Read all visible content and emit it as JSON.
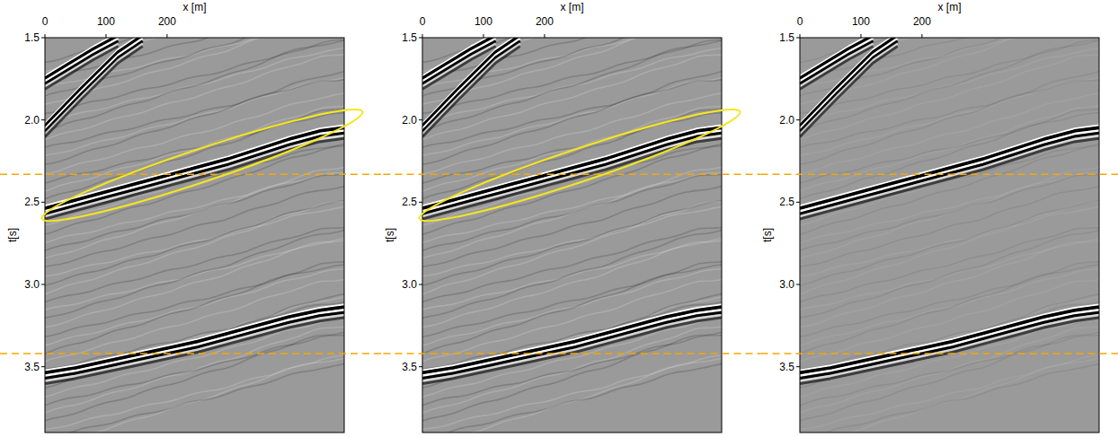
{
  "chart_data": [
    {
      "type": "seismic",
      "xlabel": "x [m]",
      "ylabel": "t[s]",
      "xlim": [
        0,
        490
      ],
      "ylim": [
        1.5,
        3.9
      ],
      "xticks": [
        0,
        100,
        200
      ],
      "yticks": [
        1.5,
        {
          "value": 2,
          "label": "2.0"
        },
        2.5,
        {
          "value": 3,
          "label": "3.0"
        },
        3.5
      ],
      "series": [
        {
          "color": "#000000",
          "x": [
            0,
            50,
            100,
            150,
            200,
            250,
            300,
            350,
            400,
            450,
            490
          ],
          "values": [
            2.55,
            2.5,
            2.45,
            2.4,
            2.35,
            2.3,
            2.25,
            2.19,
            2.13,
            2.08,
            2.06
          ]
        },
        {
          "color": "#000000",
          "x": [
            0,
            50,
            100,
            150,
            200,
            250,
            300,
            350,
            400,
            450,
            490
          ],
          "values": [
            3.55,
            3.52,
            3.48,
            3.44,
            3.4,
            3.36,
            3.31,
            3.26,
            3.21,
            3.17,
            3.15
          ]
        },
        {
          "color": "#000000",
          "x": [
            0,
            40,
            80,
            120
          ],
          "values": [
            1.76,
            1.67,
            1.58,
            1.5
          ]
        },
        {
          "color": "#000000",
          "x": [
            0,
            60,
            120,
            160
          ],
          "values": [
            2.05,
            1.82,
            1.6,
            1.5
          ]
        }
      ],
      "hlines": {
        "values": [
          2.33,
          3.42
        ],
        "color": "#f5a800",
        "line_style": "dashed"
      },
      "highlight": {
        "x": [
          -5,
          520
        ],
        "t": [
          2.6,
          1.95
        ],
        "half_width": 0.1,
        "color": "#f5e61e"
      }
    },
    {
      "type": "seismic",
      "xlabel": "x [m]",
      "ylabel": "t[s]",
      "xlim": [
        0,
        490
      ],
      "ylim": [
        1.5,
        3.9
      ],
      "xticks": [
        0,
        100,
        200
      ],
      "yticks": [
        1.5,
        {
          "value": 2,
          "label": "2.0"
        },
        2.5,
        {
          "value": 3,
          "label": "3.0"
        },
        3.5
      ],
      "series": [
        {
          "color": "#000000",
          "x": [
            0,
            50,
            100,
            150,
            200,
            250,
            300,
            350,
            400,
            450,
            490
          ],
          "values": [
            2.55,
            2.5,
            2.45,
            2.4,
            2.35,
            2.3,
            2.25,
            2.19,
            2.13,
            2.08,
            2.06
          ]
        },
        {
          "color": "#000000",
          "x": [
            0,
            50,
            100,
            150,
            200,
            250,
            300,
            350,
            400,
            450,
            490
          ],
          "values": [
            3.55,
            3.52,
            3.48,
            3.44,
            3.4,
            3.36,
            3.31,
            3.26,
            3.21,
            3.17,
            3.15
          ]
        },
        {
          "color": "#000000",
          "x": [
            0,
            40,
            80,
            120
          ],
          "values": [
            1.76,
            1.67,
            1.58,
            1.5
          ]
        },
        {
          "color": "#000000",
          "x": [
            0,
            60,
            120,
            160
          ],
          "values": [
            2.05,
            1.82,
            1.6,
            1.5
          ]
        }
      ],
      "hlines": {
        "values": [
          2.33,
          3.42
        ],
        "color": "#f5a800",
        "line_style": "dashed"
      },
      "highlight": {
        "x": [
          -5,
          520
        ],
        "t": [
          2.6,
          1.95
        ],
        "half_width": 0.1,
        "color": "#f5e61e"
      }
    },
    {
      "type": "seismic",
      "xlabel": "x [m]",
      "ylabel": "t[s]",
      "xlim": [
        0,
        490
      ],
      "ylim": [
        1.5,
        3.9
      ],
      "xticks": [
        0,
        100,
        200
      ],
      "yticks": [
        1.5,
        {
          "value": 2,
          "label": "2.0"
        },
        2.5,
        {
          "value": 3,
          "label": "3.0"
        },
        3.5
      ],
      "series": [
        {
          "color": "#000000",
          "x": [
            0,
            50,
            100,
            150,
            200,
            250,
            300,
            350,
            400,
            450,
            490
          ],
          "values": [
            2.55,
            2.5,
            2.45,
            2.4,
            2.35,
            2.3,
            2.25,
            2.19,
            2.13,
            2.08,
            2.06
          ]
        },
        {
          "color": "#000000",
          "x": [
            0,
            50,
            100,
            150,
            200,
            250,
            300,
            350,
            400,
            450,
            490
          ],
          "values": [
            3.55,
            3.52,
            3.48,
            3.44,
            3.4,
            3.36,
            3.31,
            3.26,
            3.21,
            3.17,
            3.15
          ]
        },
        {
          "color": "#000000",
          "x": [
            0,
            40,
            80,
            120
          ],
          "values": [
            1.76,
            1.67,
            1.58,
            1.5
          ]
        },
        {
          "color": "#000000",
          "x": [
            0,
            60,
            120,
            160
          ],
          "values": [
            2.05,
            1.82,
            1.6,
            1.5
          ]
        }
      ],
      "hlines": {
        "values": [
          2.33,
          3.42
        ],
        "color": "#f5a800",
        "line_style": "dashed"
      }
    }
  ]
}
